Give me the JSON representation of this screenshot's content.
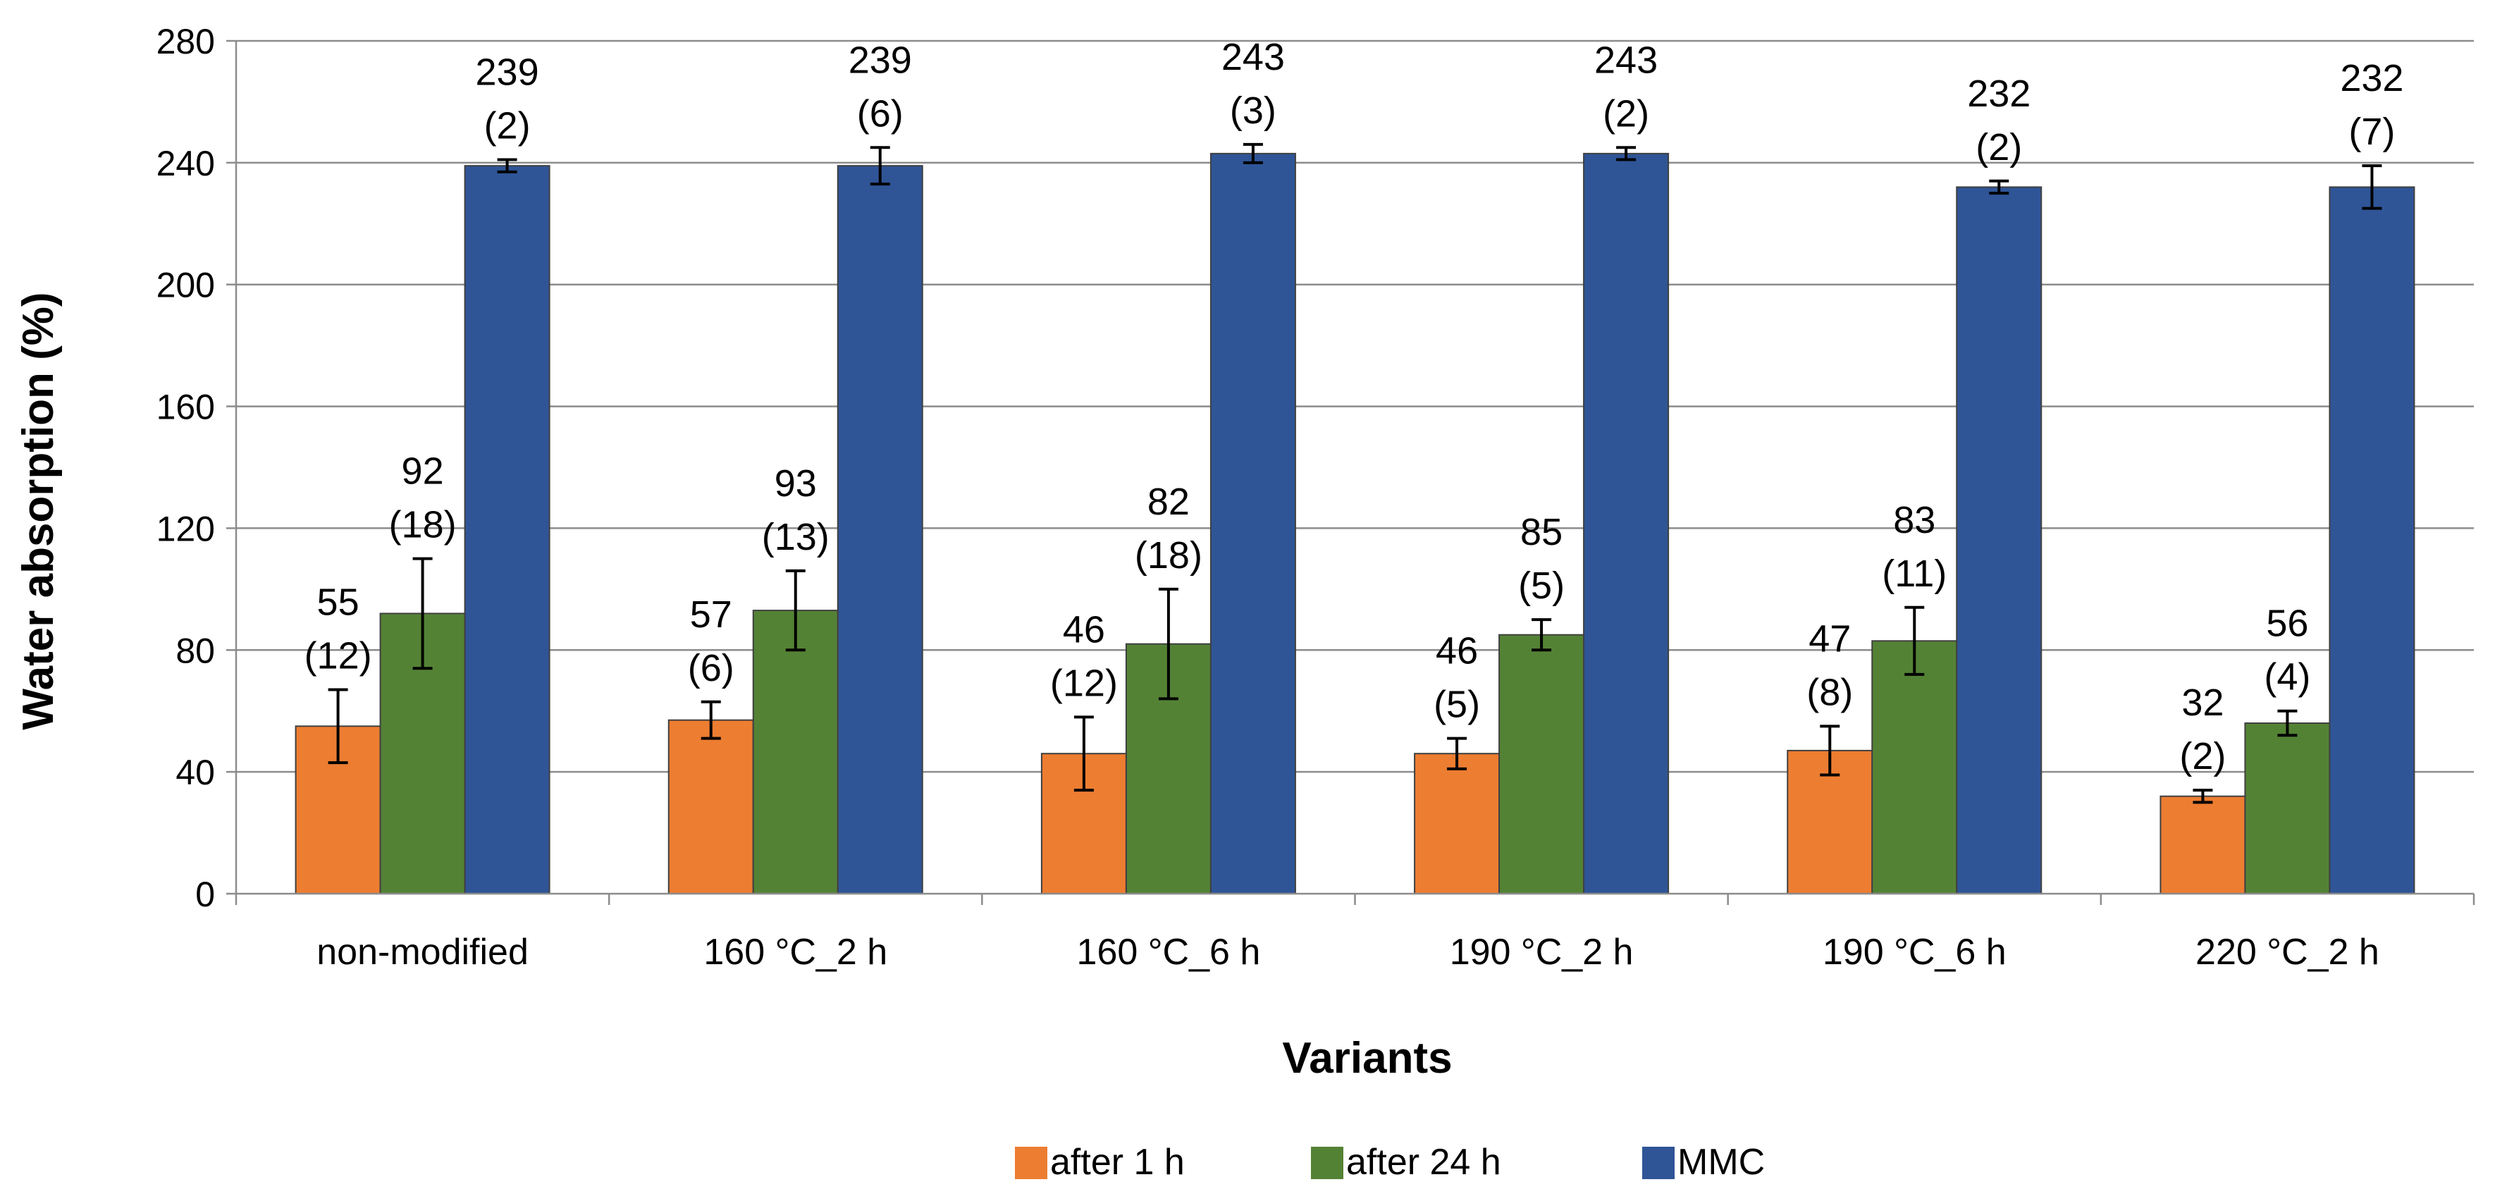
{
  "chart_data": {
    "type": "bar",
    "title": "",
    "xlabel": "Variants",
    "ylabel": "Water absorption (%)",
    "ylim": [
      0,
      280
    ],
    "yticks": [
      0,
      40,
      80,
      120,
      160,
      200,
      240,
      280
    ],
    "grid": true,
    "legend_position": "bottom",
    "categories": [
      "non-modified",
      "160 °C_2 h",
      "160 °C_6 h",
      "190 °C_2 h",
      "190 °C_6 h",
      "220 °C_2 h"
    ],
    "series": [
      {
        "name": "after 1 h",
        "color": "#ED7D31",
        "values": [
          55,
          57,
          46,
          46,
          47,
          32
        ],
        "errors": [
          12,
          6,
          12,
          5,
          8,
          2
        ],
        "labels": [
          [
            "55",
            "(12)"
          ],
          [
            "57",
            "(6)"
          ],
          [
            "46",
            "(12)"
          ],
          [
            "46",
            "(5)"
          ],
          [
            "47",
            "(8)"
          ],
          [
            "32",
            "(2)"
          ]
        ]
      },
      {
        "name": "after 24 h",
        "color": "#548235",
        "values": [
          92,
          93,
          82,
          85,
          83,
          56
        ],
        "errors": [
          18,
          13,
          18,
          5,
          11,
          4
        ],
        "labels": [
          [
            "92",
            "(18)"
          ],
          [
            "93",
            "(13)"
          ],
          [
            "82",
            "(18)"
          ],
          [
            "85",
            "(5)"
          ],
          [
            "83",
            "(11)"
          ],
          [
            "56",
            "(4)"
          ]
        ]
      },
      {
        "name": "MMC",
        "color": "#2F5597",
        "values": [
          239,
          239,
          243,
          243,
          232,
          232
        ],
        "errors": [
          2,
          6,
          3,
          2,
          2,
          7
        ],
        "labels": [
          [
            "239",
            "(2)"
          ],
          [
            "239",
            "(6)"
          ],
          [
            "243",
            "(3)"
          ],
          [
            "243",
            "(2)"
          ],
          [
            "232",
            "(2)"
          ],
          [
            "232",
            "(7)"
          ]
        ]
      }
    ]
  }
}
